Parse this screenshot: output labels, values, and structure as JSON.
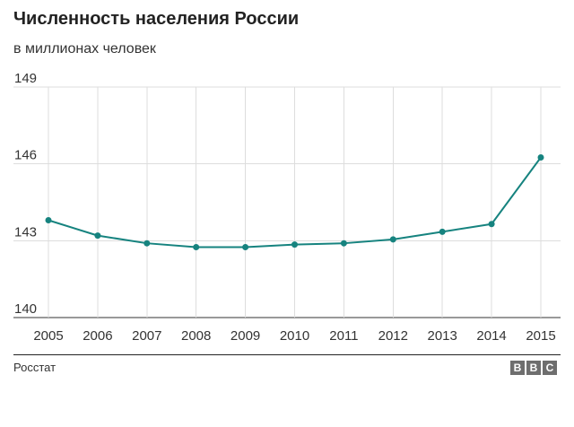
{
  "title": "Численность населения России",
  "subtitle": "в миллионах человек",
  "source": "Росстат",
  "logo": {
    "letters": [
      "B",
      "B",
      "C"
    ]
  },
  "colors": {
    "line": "#16837f",
    "grid": "#dddddd",
    "axis": "#333333",
    "text": "#333333"
  },
  "chart_data": {
    "type": "line",
    "title": "Численность населения России",
    "subtitle": "в миллионах человек",
    "xlabel": "",
    "ylabel": "",
    "categories": [
      "2005",
      "2006",
      "2007",
      "2008",
      "2009",
      "2010",
      "2011",
      "2012",
      "2013",
      "2014",
      "2015"
    ],
    "series": [
      {
        "name": "Численность населения",
        "values": [
          143.8,
          143.2,
          142.9,
          142.75,
          142.75,
          142.85,
          142.9,
          143.05,
          143.35,
          143.65,
          146.25
        ]
      }
    ],
    "ylim": [
      140,
      149
    ],
    "yticks": [
      "140",
      "143",
      "146",
      "149"
    ],
    "grid": true,
    "source": "Росстат"
  }
}
